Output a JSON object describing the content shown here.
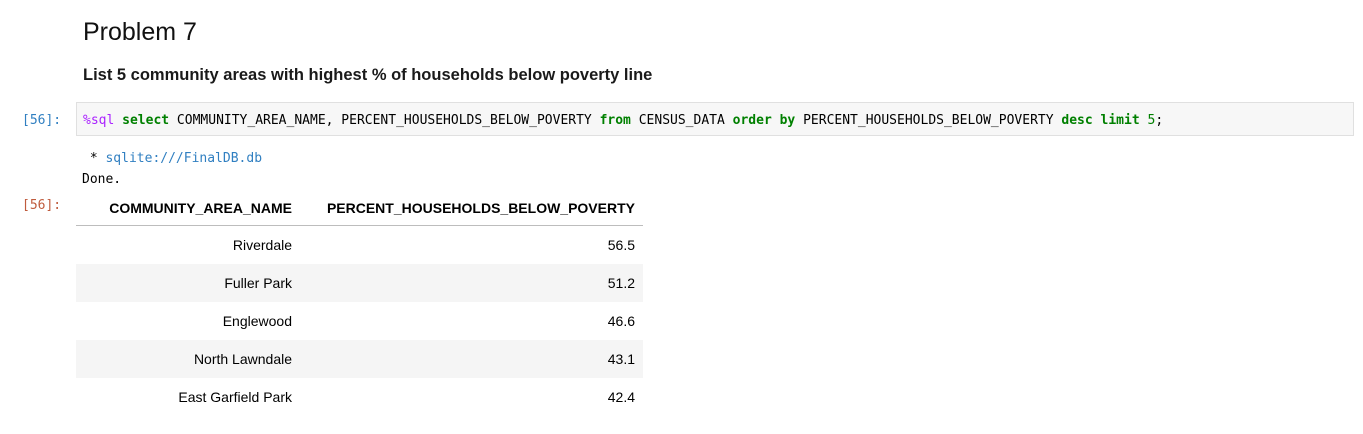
{
  "markdown": {
    "heading": "Problem 7",
    "description": "List 5 community areas with highest % of households below poverty line"
  },
  "cell": {
    "input_prompt": "[56]:",
    "output_prompt": "[56]:",
    "code": {
      "magic": "%sql",
      "select": "select",
      "cols": " COMMUNITY_AREA_NAME, PERCENT_HOUSEHOLDS_BELOW_POVERTY ",
      "from": "from",
      "table": " CENSUS_DATA ",
      "order": "order",
      "by": "by",
      "sortcol": " PERCENT_HOUSEHOLDS_BELOW_POVERTY ",
      "desc": "desc",
      "limit": "limit",
      "limit_value": "5",
      "terminator": ";"
    },
    "stream": {
      "prefix": " * ",
      "connection": "sqlite:///FinalDB.db",
      "done": "Done."
    }
  },
  "result_table": {
    "columns": [
      "COMMUNITY_AREA_NAME",
      "PERCENT_HOUSEHOLDS_BELOW_POVERTY"
    ],
    "rows": [
      [
        "Riverdale",
        "56.5"
      ],
      [
        "Fuller Park",
        "51.2"
      ],
      [
        "Englewood",
        "46.6"
      ],
      [
        "North Lawndale",
        "43.1"
      ],
      [
        "East Garfield Park",
        "42.4"
      ]
    ]
  },
  "colors": {
    "input_prompt": "#307fc1",
    "output_prompt": "#bf5b3d",
    "keyword": "#008000",
    "magic": "#aa22ff"
  }
}
